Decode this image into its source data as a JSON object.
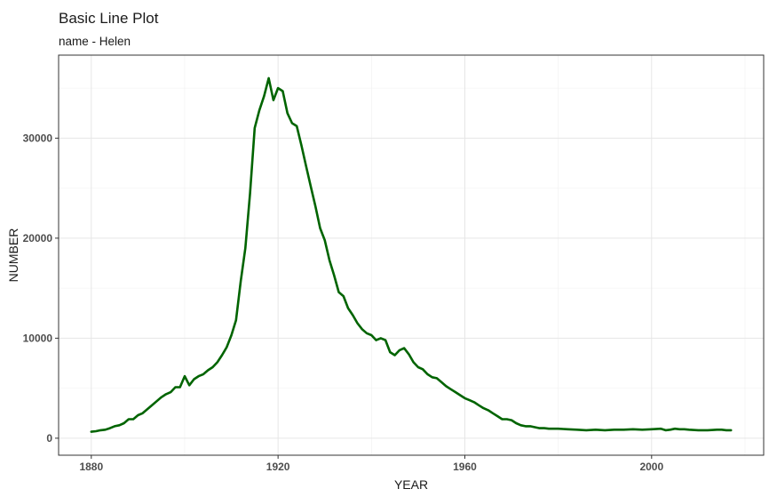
{
  "chart_data": {
    "type": "line",
    "title": "Basic Line Plot",
    "subtitle": "name - Helen",
    "xlabel": "YEAR",
    "ylabel": "NUMBER",
    "xlim": [
      1873,
      2024
    ],
    "ylim": [
      -1700,
      38300
    ],
    "xticks": [
      1880,
      1920,
      1960,
      2000
    ],
    "yticks": [
      0,
      10000,
      20000,
      30000
    ],
    "grid": true,
    "legend": "none",
    "series": [
      {
        "color": "#006400",
        "x": [
          1880,
          1881,
          1882,
          1883,
          1884,
          1885,
          1886,
          1887,
          1888,
          1889,
          1890,
          1891,
          1892,
          1893,
          1894,
          1895,
          1896,
          1897,
          1898,
          1899,
          1900,
          1901,
          1902,
          1903,
          1904,
          1905,
          1906,
          1907,
          1908,
          1909,
          1910,
          1911,
          1912,
          1913,
          1914,
          1915,
          1916,
          1917,
          1918,
          1919,
          1920,
          1921,
          1922,
          1923,
          1924,
          1925,
          1926,
          1927,
          1928,
          1929,
          1930,
          1931,
          1932,
          1933,
          1934,
          1935,
          1936,
          1937,
          1938,
          1939,
          1940,
          1941,
          1942,
          1943,
          1944,
          1945,
          1946,
          1947,
          1948,
          1949,
          1950,
          1951,
          1952,
          1953,
          1954,
          1955,
          1956,
          1957,
          1958,
          1959,
          1960,
          1961,
          1962,
          1963,
          1964,
          1965,
          1966,
          1967,
          1968,
          1969,
          1970,
          1971,
          1972,
          1973,
          1974,
          1975,
          1976,
          1977,
          1978,
          1979,
          1980,
          1982,
          1984,
          1986,
          1988,
          1990,
          1992,
          1994,
          1996,
          1998,
          2000,
          2002,
          2003,
          2004,
          2005,
          2006,
          2007,
          2008,
          2010,
          2012,
          2014,
          2015,
          2016,
          2017
        ],
        "y": [
          650,
          700,
          800,
          850,
          1000,
          1200,
          1300,
          1500,
          1900,
          1900,
          2300,
          2500,
          2900,
          3300,
          3700,
          4100,
          4400,
          4600,
          5100,
          5100,
          6200,
          5300,
          5900,
          6200,
          6400,
          6800,
          7100,
          7600,
          8300,
          9100,
          10300,
          11800,
          15700,
          19000,
          24500,
          31000,
          32800,
          34200,
          36000,
          33800,
          35000,
          34700,
          32500,
          31500,
          31200,
          29300,
          27200,
          25200,
          23200,
          21000,
          19800,
          17800,
          16300,
          14600,
          14200,
          13000,
          12300,
          11500,
          10900,
          10500,
          10300,
          9800,
          10000,
          9800,
          8600,
          8300,
          8800,
          9000,
          8400,
          7600,
          7100,
          6900,
          6400,
          6100,
          6000,
          5600,
          5200,
          4900,
          4600,
          4300,
          4000,
          3800,
          3600,
          3300,
          3000,
          2800,
          2500,
          2200,
          1900,
          1900,
          1800,
          1500,
          1300,
          1200,
          1200,
          1100,
          1000,
          1000,
          950,
          950,
          950,
          900,
          850,
          800,
          850,
          800,
          850,
          850,
          900,
          850,
          900,
          950,
          800,
          850,
          950,
          900,
          900,
          850,
          800,
          800,
          850,
          850,
          800,
          800
        ]
      }
    ]
  }
}
